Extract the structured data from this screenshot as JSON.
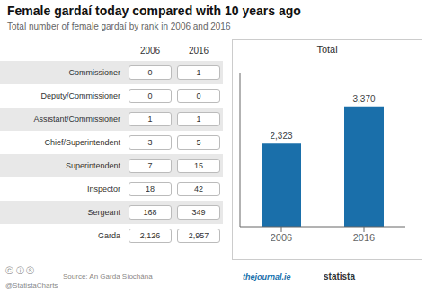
{
  "title": "Female gardaí today compared with 10 years ago",
  "subtitle": "Total number of female gardaí by rank in 2006 and 2016",
  "table": {
    "columns": [
      "2006",
      "2016"
    ],
    "rows": [
      {
        "name": "Commissioner",
        "values": [
          0,
          1
        ],
        "value_labels": [
          "0",
          "1"
        ]
      },
      {
        "name": "Deputy/Commissioner",
        "values": [
          0,
          0
        ],
        "value_labels": [
          "0",
          "0"
        ]
      },
      {
        "name": "Assistant/Commissioner",
        "values": [
          1,
          1
        ],
        "value_labels": [
          "1",
          "1"
        ]
      },
      {
        "name": "Chief/Superintendent",
        "values": [
          3,
          5
        ],
        "value_labels": [
          "3",
          "5"
        ]
      },
      {
        "name": "Superintendent",
        "values": [
          7,
          15
        ],
        "value_labels": [
          "7",
          "15"
        ]
      },
      {
        "name": "Inspector",
        "values": [
          18,
          42
        ],
        "value_labels": [
          "18",
          "42"
        ]
      },
      {
        "name": "Sergeant",
        "values": [
          168,
          349
        ],
        "value_labels": [
          "168",
          "349"
        ]
      },
      {
        "name": "Garda",
        "values": [
          2126,
          2957
        ],
        "value_labels": [
          "2,126",
          "2,957"
        ]
      }
    ]
  },
  "annotations": [
    "ⓒ ⓘ ⓢ",
    "@StatistaCharts",
    "Source: An Garda Síochána",
    "thejournal.ie",
    "statista"
  ],
  "chart_data": {
    "type": "bar",
    "title": "Total",
    "categories": [
      "2006",
      "2016"
    ],
    "values": [
      2323,
      3370
    ],
    "value_labels": [
      "2,323",
      "3,370"
    ],
    "data_labels": true,
    "color": "#1a6faa",
    "ylim": [
      0,
      4313.6
    ],
    "tick_labels": "x",
    "grid": false
  }
}
